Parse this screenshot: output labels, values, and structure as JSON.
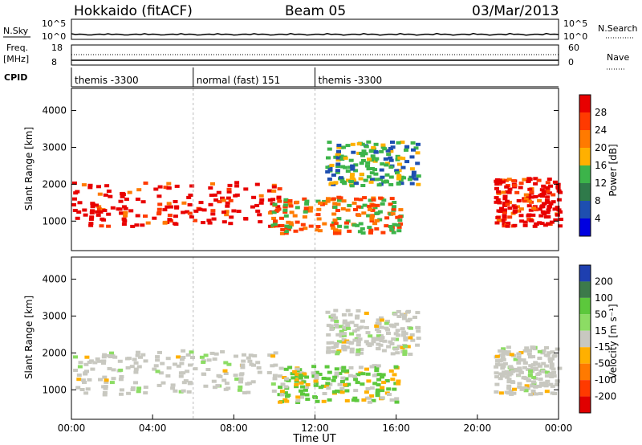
{
  "header": {
    "station": "Hokkaido (fitACF)",
    "beam": "Beam 05",
    "date": "03/Mar/2013"
  },
  "top_panels": {
    "nsky_label": "N.Sky",
    "nsearch_label": "N.Search",
    "nsky_ticks": [
      "10^5",
      "10^0"
    ],
    "nsearch_ticks": [
      "10^5",
      "10^0"
    ],
    "freq_label": "Freq.",
    "freq_unit": "[MHz]",
    "freq_ticks": [
      "18",
      "8"
    ],
    "nave_label": "Nave",
    "nave_ticks": [
      "60",
      "0"
    ],
    "cpid_label": "CPID",
    "cpid_segments": [
      {
        "label": "themis -3300",
        "start_h": 0,
        "end_h": 6
      },
      {
        "label": "normal (fast) 151",
        "start_h": 6,
        "end_h": 12
      },
      {
        "label": "themis -3300",
        "start_h": 12,
        "end_h": 24
      }
    ]
  },
  "chart_data": [
    {
      "type": "heatmap",
      "name": "power",
      "ylabel": "Slant Range [km]",
      "ylim": [
        200,
        4600
      ],
      "xlim": [
        0,
        24
      ],
      "y_ticks": [
        1000,
        2000,
        3000,
        4000
      ],
      "colorbar": {
        "label": "Power [dB]",
        "ticks": [
          "28",
          "24",
          "20",
          "16",
          "12",
          "8",
          "4"
        ],
        "colors": [
          "#e80000",
          "#ff3a00",
          "#ff7a00",
          "#ffb000",
          "#3cb44a",
          "#2f7a4a",
          "#1e4fb0",
          "#0000e0"
        ]
      },
      "regions": [
        {
          "x": [
            0,
            10.2
          ],
          "y": [
            900,
            2100
          ],
          "level": 28
        },
        {
          "x": [
            9.8,
            16.2
          ],
          "y": [
            700,
            1700
          ],
          "level": 20
        },
        {
          "x": [
            12.5,
            17
          ],
          "y": [
            2000,
            3200
          ],
          "level": 12
        },
        {
          "x": [
            20.8,
            24
          ],
          "y": [
            900,
            2200
          ],
          "level": 28
        }
      ]
    },
    {
      "type": "heatmap",
      "name": "velocity",
      "xlabel": "Time UT",
      "ylabel": "Slant Range [km]",
      "ylim": [
        200,
        4600
      ],
      "xlim": [
        0,
        24
      ],
      "x_ticks": [
        "00:00",
        "04:00",
        "08:00",
        "12:00",
        "16:00",
        "20:00",
        "00:00"
      ],
      "y_ticks": [
        1000,
        2000,
        3000,
        4000
      ],
      "colorbar": {
        "label": "Velocity [m s⁻¹]",
        "ticks": [
          "200",
          "100",
          "50",
          "15",
          "-15",
          "-50",
          "-100",
          "-200"
        ],
        "colors": [
          "#1e3fb0",
          "#3c7a4a",
          "#5cc83c",
          "#8cdc64",
          "#c8c8c0",
          "#ffb000",
          "#ff7a00",
          "#ff3a00",
          "#e00000"
        ]
      },
      "regions": [
        {
          "x": [
            0,
            10.2
          ],
          "y": [
            900,
            2100
          ],
          "velocity": 0
        },
        {
          "x": [
            10,
            16
          ],
          "y": [
            700,
            1700
          ],
          "velocity": 30
        },
        {
          "x": [
            12.5,
            17
          ],
          "y": [
            2000,
            3200
          ],
          "velocity": 0
        },
        {
          "x": [
            20.8,
            24
          ],
          "y": [
            900,
            2200
          ],
          "velocity": 0
        }
      ]
    }
  ]
}
